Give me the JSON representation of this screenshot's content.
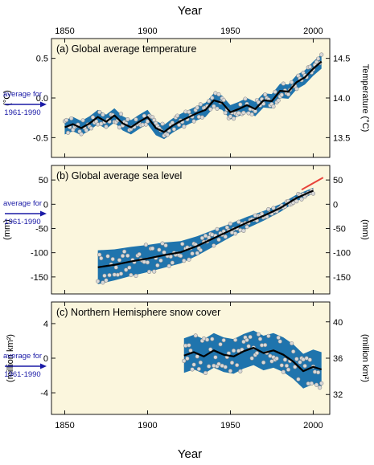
{
  "figure": {
    "x_axis_title": "Year",
    "x_ticks": [
      "1850",
      "1900",
      "1950",
      "2000"
    ],
    "reference_label_line1": "average for",
    "reference_label_line2": "1961-1990",
    "colors": {
      "panel_bg": "#fbf6dd",
      "band": "#1f74ad",
      "line": "#000000",
      "points": "#d9d9d9",
      "satellite_line": "#e8433a",
      "reference_arrow": "#1a1aa6"
    }
  },
  "chart_data": [
    {
      "type": "line",
      "title": "(a) Global average temperature",
      "ylabel_left": "(°C)",
      "ylabel_right": "Temperature (°C)",
      "xlim": [
        1842,
        2010
      ],
      "ylim_left": [
        -0.75,
        0.75
      ],
      "left_ticks": [
        "0.5",
        "0.0",
        "-0.5"
      ],
      "right_ticks": [
        "14.5",
        "14.0",
        "13.5"
      ],
      "series": [
        {
          "x": [
            1850,
            1855,
            1860,
            1865,
            1870,
            1875,
            1880,
            1885,
            1890,
            1895,
            1900,
            1905,
            1910,
            1915,
            1920,
            1925,
            1930,
            1935,
            1940,
            1945,
            1950,
            1955,
            1960,
            1965,
            1970,
            1975,
            1980,
            1985,
            1990,
            1995,
            2000,
            2005
          ],
          "values": [
            -0.37,
            -0.33,
            -0.38,
            -0.32,
            -0.24,
            -0.3,
            -0.22,
            -0.32,
            -0.37,
            -0.3,
            -0.24,
            -0.38,
            -0.43,
            -0.35,
            -0.29,
            -0.24,
            -0.19,
            -0.15,
            -0.03,
            -0.06,
            -0.18,
            -0.14,
            -0.09,
            -0.14,
            -0.03,
            -0.04,
            0.09,
            0.08,
            0.2,
            0.26,
            0.37,
            0.46
          ],
          "band_halfwidth": 0.09
        }
      ]
    },
    {
      "type": "line",
      "title": "(b) Global average sea level",
      "ylabel_left": "(mm)",
      "ylabel_right": "(mm)",
      "xlim": [
        1842,
        2010
      ],
      "ylim_left": [
        -185,
        80
      ],
      "left_ticks": [
        "50",
        "0",
        "-50",
        "-100",
        "-150"
      ],
      "right_ticks": [
        "50",
        "0",
        "-50",
        "-100",
        "-150"
      ],
      "series": [
        {
          "x": [
            1870,
            1880,
            1890,
            1900,
            1910,
            1920,
            1930,
            1940,
            1950,
            1960,
            1970,
            1980,
            1990,
            2000
          ],
          "values": [
            -130,
            -125,
            -118,
            -112,
            -105,
            -99,
            -86,
            -70,
            -54,
            -38,
            -24,
            -8,
            13,
            28
          ],
          "band_halfwidth": [
            35,
            32,
            30,
            28,
            26,
            23,
            20,
            17,
            14,
            12,
            10,
            8,
            7,
            6
          ]
        },
        {
          "name": "satellite",
          "x": [
            1993,
            2006
          ],
          "values": [
            30,
            55
          ]
        }
      ]
    },
    {
      "type": "line",
      "title": "(c) Northern Hemisphere snow cover",
      "ylabel_left": "(million km²)",
      "ylabel_right": "(million km²)",
      "xlim": [
        1842,
        2010
      ],
      "ylim_left": [
        -6.5,
        6.5
      ],
      "left_ticks": [
        "4",
        "0",
        "-4"
      ],
      "right_ticks": [
        "40",
        "36",
        "32"
      ],
      "series": [
        {
          "x": [
            1922,
            1928,
            1934,
            1940,
            1946,
            1952,
            1958,
            1964,
            1970,
            1976,
            1982,
            1988,
            1994,
            2000,
            2005
          ],
          "values": [
            0.3,
            0.7,
            0.2,
            0.9,
            0.4,
            0.2,
            0.8,
            1.2,
            0.6,
            0.9,
            0.4,
            -0.4,
            -1.5,
            -1.0,
            -1.3
          ],
          "band_halfwidth": 2.0
        }
      ]
    }
  ]
}
